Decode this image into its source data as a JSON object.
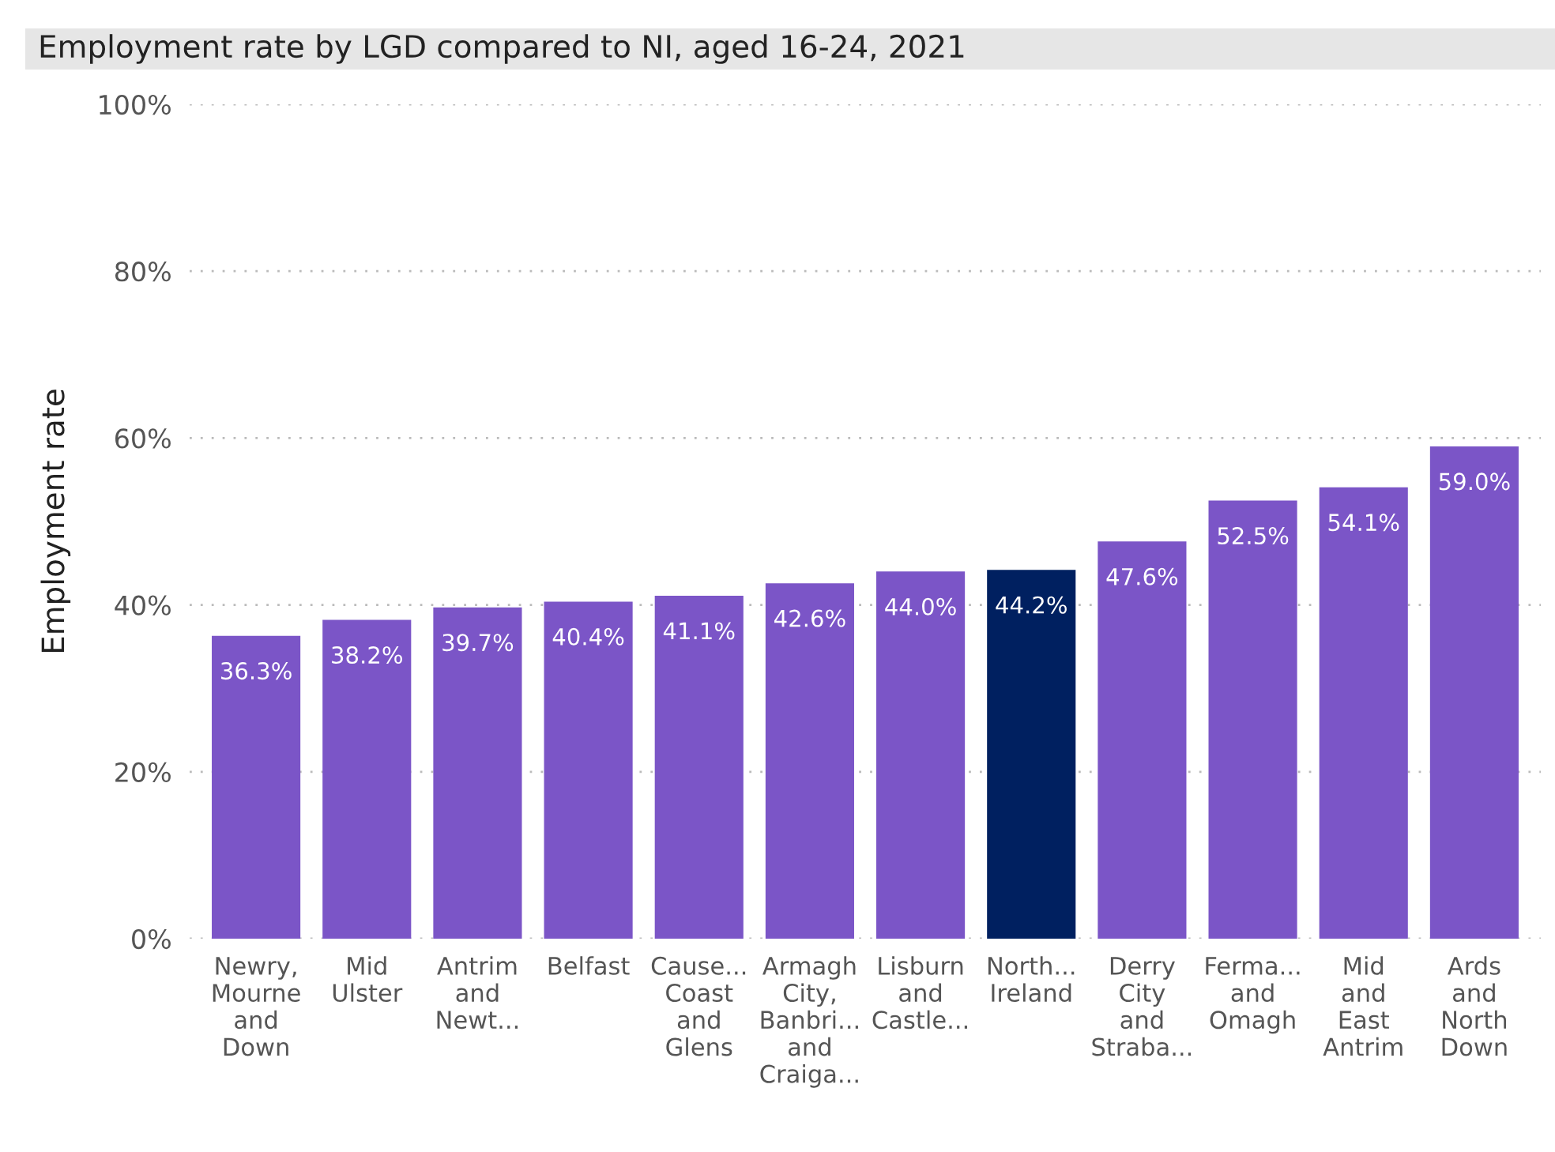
{
  "chart_data": {
    "type": "bar",
    "title": "Employment rate by LGD compared to NI, aged 16-24, 2021",
    "ylabel": "Employment rate",
    "categories": [
      "Newry, Mourne and Down",
      "Mid Ulster",
      "Antrim and Newt...",
      "Belfast",
      "Cause... Coast and Glens",
      "Armagh City, Banbri... and Craiga...",
      "Lisburn and Castle...",
      "North... Ireland",
      "Derry City and Straba...",
      "Ferma... and Omagh",
      "Mid and East Antrim",
      "Ards and North Down"
    ],
    "values": [
      36.3,
      38.2,
      39.7,
      40.4,
      41.1,
      42.6,
      44.0,
      44.2,
      47.6,
      52.5,
      54.1,
      59.0
    ],
    "colors": [
      "#7b55c7",
      "#7b55c7",
      "#7b55c7",
      "#7b55c7",
      "#7b55c7",
      "#7b55c7",
      "#7b55c7",
      "#002060",
      "#7b55c7",
      "#7b55c7",
      "#7b55c7",
      "#7b55c7"
    ],
    "value_labels": [
      "36.3%",
      "38.2%",
      "39.7%",
      "40.4%",
      "41.1%",
      "42.6%",
      "44.0%",
      "44.2%",
      "47.6%",
      "52.5%",
      "54.1%",
      "59.0%"
    ],
    "ylim": [
      0,
      100
    ],
    "yticks": [
      {
        "value": 0,
        "label": "0%"
      },
      {
        "value": 20,
        "label": "20%"
      },
      {
        "value": 40,
        "label": "40%"
      },
      {
        "value": 60,
        "label": "60%"
      },
      {
        "value": 80,
        "label": "80%"
      },
      {
        "value": 100,
        "label": "100%"
      }
    ],
    "grid": "y"
  }
}
